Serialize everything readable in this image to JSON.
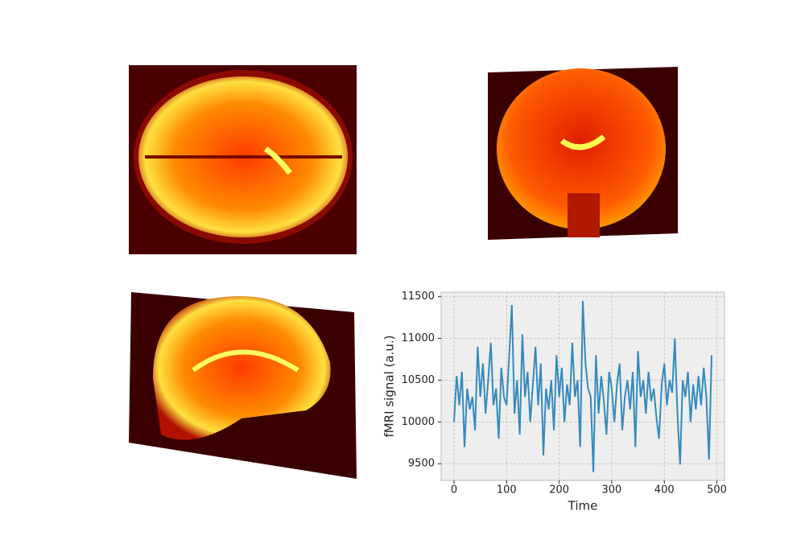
{
  "chart_data": {
    "type": "line",
    "xlabel": "Time",
    "ylabel": "fMRI signal (a.u.)",
    "x": [
      0,
      5,
      10,
      15,
      20,
      25,
      30,
      35,
      40,
      45,
      50,
      55,
      60,
      65,
      70,
      75,
      80,
      85,
      90,
      95,
      100,
      105,
      110,
      115,
      120,
      125,
      130,
      135,
      140,
      145,
      150,
      155,
      160,
      165,
      170,
      175,
      180,
      185,
      190,
      195,
      200,
      205,
      210,
      215,
      220,
      225,
      230,
      235,
      240,
      245,
      250,
      255,
      260,
      265,
      270,
      275,
      280,
      285,
      290,
      295,
      300,
      305,
      310,
      315,
      320,
      325,
      330,
      335,
      340,
      345,
      350,
      355,
      360,
      365,
      370,
      375,
      380,
      385,
      390,
      395,
      400,
      405,
      410,
      415,
      420,
      425,
      430,
      435,
      440,
      445,
      450,
      455,
      460,
      465,
      470,
      475,
      480,
      485,
      490
    ],
    "series": [
      {
        "color": "#348abd",
        "values": [
          10000,
          10550,
          10200,
          10600,
          9700,
          10400,
          10150,
          10300,
          9900,
          10900,
          10300,
          10700,
          10100,
          10500,
          10950,
          10200,
          10400,
          9800,
          10650,
          10300,
          10200,
          10800,
          11400,
          10100,
          10500,
          9850,
          11050,
          10300,
          10600,
          10000,
          10450,
          10900,
          10200,
          10700,
          9600,
          10400,
          10150,
          10500,
          9900,
          10800,
          10300,
          10650,
          10000,
          10450,
          10200,
          10950,
          10300,
          10500,
          9700,
          11450,
          10700,
          10400,
          10300,
          9400,
          10800,
          10100,
          10550,
          10250,
          9850,
          10600,
          10400,
          10000,
          10450,
          10700,
          9900,
          10300,
          10500,
          10150,
          10600,
          9700,
          10850,
          10300,
          10500,
          10100,
          10600,
          10250,
          10400,
          10050,
          9800,
          10450,
          10700,
          10200,
          10500,
          10350,
          11000,
          10100,
          9490,
          10500,
          10300,
          10600,
          10000,
          10450,
          10150,
          10550,
          10200,
          10650,
          10300,
          9550,
          10800
        ]
      }
    ],
    "xlim": [
      -24.5,
      514.5
    ],
    "xticks": [
      0,
      100,
      200,
      300,
      400,
      500
    ],
    "ylim": [
      9300,
      11555
    ],
    "yticks": [
      9500,
      10000,
      10500,
      11000,
      11500
    ],
    "grid": true
  }
}
